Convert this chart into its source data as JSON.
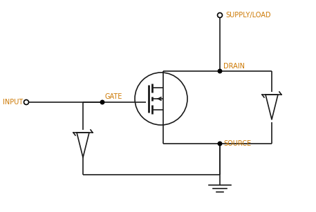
{
  "bg_color": "#ffffff",
  "line_color": "#1a1a1a",
  "label_color": "#cc7700",
  "node_color": "#000000",
  "input_label": "INPUT",
  "gate_label": "GATE",
  "drain_label": "DRAIN",
  "source_label": "SOURCE",
  "supply_label": "SUPPLY/LOAD",
  "figsize": [
    4.57,
    3.07
  ],
  "dpi": 100,
  "xlim": [
    0,
    457
  ],
  "ylim": [
    0,
    307
  ]
}
